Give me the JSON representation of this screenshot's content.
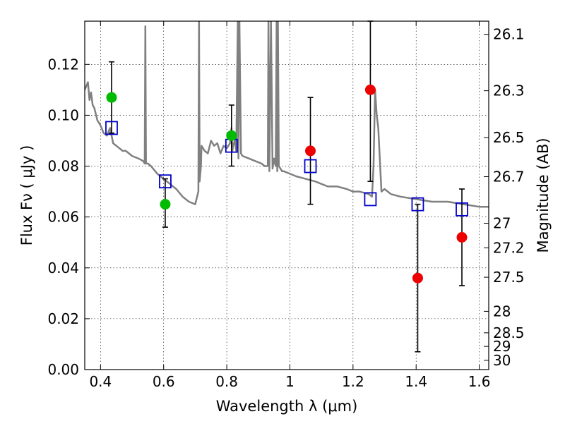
{
  "chart_data": {
    "type": "scatter",
    "xlabel": "Wavelength  λ (μm)",
    "ylabel": "Flux  Fν  ( μJy )",
    "y2label": "Magnitude (AB)",
    "xlim": [
      0.35,
      1.63
    ],
    "ylim": [
      0.0,
      0.137
    ],
    "x_ticks": [
      0.4,
      0.6,
      0.8,
      1.0,
      1.2,
      1.4,
      1.6
    ],
    "x_tick_labels": [
      "0.4",
      "0.6",
      "0.8",
      "1",
      "1.2",
      "1.4",
      "1.6"
    ],
    "y_ticks": [
      0.0,
      0.02,
      0.04,
      0.06,
      0.08,
      0.1,
      0.12
    ],
    "y_tick_labels": [
      "0.00",
      "0.02",
      "0.04",
      "0.06",
      "0.08",
      "0.10",
      "0.12"
    ],
    "mag_ticks": [
      26.1,
      26.3,
      26.5,
      26.7,
      27,
      27.2,
      27.5,
      28,
      28.5,
      29,
      30
    ],
    "mag_tick_labels": [
      "26.1",
      "26.3",
      "26.5",
      "26.7",
      "27",
      "27.2",
      "27.5",
      "28",
      "28.5",
      "29",
      "30"
    ],
    "grid": true,
    "colors": {
      "model": "#808080",
      "model_points": "#0000cc",
      "green_points": "#00bb00",
      "red_points": "#ee0000",
      "errorbar": "#000000"
    },
    "model_spectrum": {
      "x": [
        0.35,
        0.36,
        0.365,
        0.37,
        0.375,
        0.38,
        0.39,
        0.4,
        0.41,
        0.42,
        0.43,
        0.44,
        0.45,
        0.46,
        0.47,
        0.48,
        0.49,
        0.5,
        0.52,
        0.535,
        0.54,
        0.542,
        0.544,
        0.55,
        0.56,
        0.58,
        0.6,
        0.62,
        0.64,
        0.66,
        0.68,
        0.7,
        0.71,
        0.712,
        0.714,
        0.718,
        0.72,
        0.73,
        0.74,
        0.75,
        0.76,
        0.77,
        0.78,
        0.79,
        0.8,
        0.81,
        0.815,
        0.818,
        0.82,
        0.825,
        0.83,
        0.835,
        0.837,
        0.84,
        0.845,
        0.85,
        0.87,
        0.89,
        0.91,
        0.92,
        0.93,
        0.932,
        0.935,
        0.94,
        0.945,
        0.95,
        0.955,
        0.958,
        0.96,
        0.962,
        0.965,
        0.97,
        0.975,
        0.98,
        1.0,
        1.02,
        1.05,
        1.08,
        1.1,
        1.12,
        1.15,
        1.18,
        1.2,
        1.22,
        1.25,
        1.26,
        1.265,
        1.27,
        1.275,
        1.28,
        1.29,
        1.3,
        1.32,
        1.35,
        1.4,
        1.45,
        1.5,
        1.55,
        1.6,
        1.63
      ],
      "y": [
        0.11,
        0.113,
        0.106,
        0.109,
        0.104,
        0.103,
        0.098,
        0.096,
        0.093,
        0.092,
        0.095,
        0.089,
        0.088,
        0.087,
        0.086,
        0.086,
        0.085,
        0.084,
        0.083,
        0.082,
        0.081,
        0.135,
        0.081,
        0.081,
        0.08,
        0.077,
        0.075,
        0.073,
        0.071,
        0.068,
        0.066,
        0.065,
        0.07,
        0.137,
        0.074,
        0.08,
        0.088,
        0.086,
        0.085,
        0.09,
        0.088,
        0.089,
        0.085,
        0.088,
        0.087,
        0.089,
        0.095,
        0.086,
        0.088,
        0.09,
        0.086,
        0.137,
        0.083,
        0.137,
        0.085,
        0.084,
        0.083,
        0.082,
        0.081,
        0.08,
        0.08,
        0.137,
        0.078,
        0.137,
        0.079,
        0.083,
        0.08,
        0.137,
        0.078,
        0.137,
        0.08,
        0.079,
        0.078,
        0.078,
        0.077,
        0.076,
        0.075,
        0.074,
        0.073,
        0.072,
        0.072,
        0.071,
        0.07,
        0.07,
        0.069,
        0.068,
        0.08,
        0.11,
        0.1,
        0.095,
        0.07,
        0.071,
        0.069,
        0.068,
        0.067,
        0.066,
        0.066,
        0.065,
        0.064,
        0.064
      ]
    },
    "series": [
      {
        "marker": "open-square",
        "color": "#0000cc",
        "x": [
          0.435,
          0.605,
          0.815,
          1.065,
          1.255,
          1.405,
          1.545
        ],
        "y": [
          0.095,
          0.074,
          0.088,
          0.08,
          0.067,
          0.065,
          0.063
        ]
      },
      {
        "marker": "circle",
        "color": "#00bb00",
        "x": [
          0.435,
          0.605,
          0.815
        ],
        "y": [
          0.107,
          0.065,
          0.092
        ],
        "yerr_low": [
          0.093,
          0.056,
          0.08
        ],
        "yerr_high": [
          0.121,
          0.075,
          0.104
        ]
      },
      {
        "marker": "circle",
        "color": "#ee0000",
        "x": [
          1.065,
          1.255,
          1.405,
          1.545
        ],
        "y": [
          0.086,
          0.11,
          0.036,
          0.052
        ],
        "yerr_low": [
          0.065,
          0.074,
          0.007,
          0.033
        ],
        "yerr_high": [
          0.107,
          0.139,
          0.065,
          0.071
        ]
      }
    ]
  }
}
